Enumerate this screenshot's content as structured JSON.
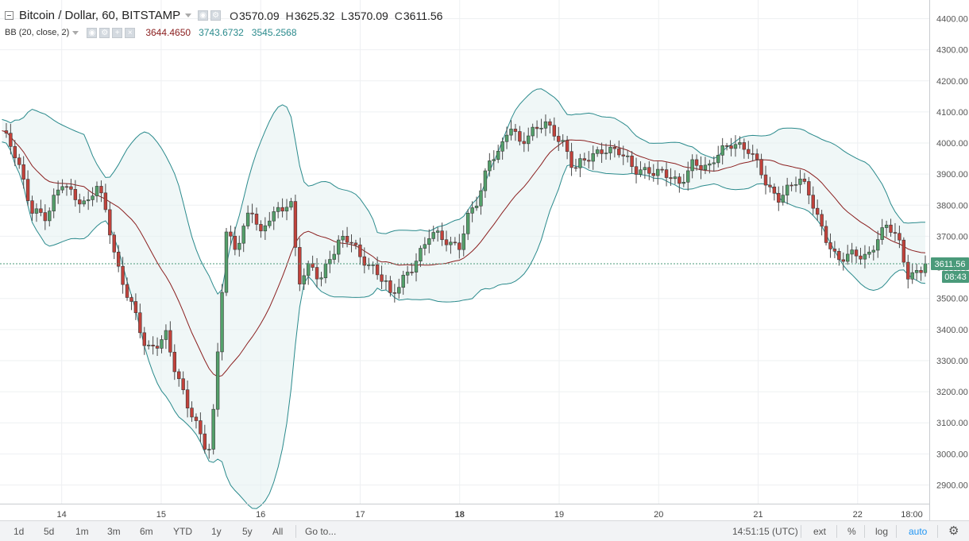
{
  "header": {
    "symbol_title": "Bitcoin / Dollar, 60, BITSTAMP",
    "open_label": "O",
    "open_value": "3570.09",
    "high_label": "H",
    "high_value": "3625.32",
    "low_label": "L",
    "low_value": "3570.09",
    "close_label": "C",
    "close_value": "3611.56"
  },
  "indicator": {
    "name": "BB (20, close, 2)",
    "basis": "3644.4650",
    "upper": "3743.6732",
    "lower": "3545.2568",
    "basis_color": "#8b2020",
    "band_color": "#2a8a8c"
  },
  "price_tag": {
    "value": "3611.56",
    "countdown": "08:43",
    "color": "#4a9a7a"
  },
  "toolbar": {
    "ranges": [
      "1d",
      "5d",
      "1m",
      "3m",
      "6m",
      "YTD",
      "1y",
      "5y",
      "All"
    ],
    "goto": "Go to...",
    "time": "14:51:15 (UTC)",
    "ext": "ext",
    "percent": "%",
    "log": "log",
    "auto": "auto",
    "settings_icon": "gear-icon"
  },
  "chart_data": {
    "type": "candlestick",
    "title": "Bitcoin / Dollar, 60, BITSTAMP",
    "ylim": [
      2840,
      4460
    ],
    "y_ticks": [
      2900,
      3000,
      3100,
      3200,
      3300,
      3400,
      3500,
      3600,
      3700,
      3800,
      3900,
      4000,
      4100,
      4200,
      4300,
      4400
    ],
    "y_tick_labels": [
      "2900.00",
      "3000.00",
      "3100.00",
      "3200.00",
      "3300.00",
      "3400.00",
      "3500.00",
      "3600.00",
      "3700.00",
      "3800.00",
      "3900.00",
      "4000.00",
      "4100.00",
      "4200.00",
      "4300.00",
      "4400.00"
    ],
    "xlim": [
      13.38,
      22.72
    ],
    "x_ticks": [
      14,
      15,
      16,
      17,
      18,
      19,
      20,
      21,
      22
    ],
    "x_tick_labels": [
      "14",
      "15",
      "16",
      "17",
      "18",
      "19",
      "20",
      "21",
      "22"
    ],
    "x_axis_end_label": "18:00",
    "bold_tick": "18",
    "last_price": 3611.56,
    "up_color": "#53a06a",
    "down_color": "#c2423b",
    "grid": true,
    "price_anchors": [
      [
        13.4,
        4030
      ],
      [
        13.55,
        3955
      ],
      [
        13.7,
        3790
      ],
      [
        13.85,
        3750
      ],
      [
        14.0,
        3880
      ],
      [
        14.12,
        3840
      ],
      [
        14.25,
        3790
      ],
      [
        14.35,
        3860
      ],
      [
        14.45,
        3780
      ],
      [
        14.55,
        3620
      ],
      [
        14.65,
        3520
      ],
      [
        14.75,
        3430
      ],
      [
        14.85,
        3330
      ],
      [
        14.95,
        3360
      ],
      [
        15.05,
        3390
      ],
      [
        15.15,
        3250
      ],
      [
        15.25,
        3160
      ],
      [
        15.35,
        3100
      ],
      [
        15.45,
        3030
      ],
      [
        15.5,
        3020
      ],
      [
        15.58,
        3380
      ],
      [
        15.65,
        3700
      ],
      [
        15.75,
        3660
      ],
      [
        15.82,
        3720
      ],
      [
        15.9,
        3810
      ],
      [
        16.0,
        3700
      ],
      [
        16.1,
        3760
      ],
      [
        16.2,
        3780
      ],
      [
        16.3,
        3830
      ],
      [
        16.38,
        3560
      ],
      [
        16.5,
        3600
      ],
      [
        16.6,
        3550
      ],
      [
        16.7,
        3640
      ],
      [
        16.8,
        3700
      ],
      [
        16.9,
        3690
      ],
      [
        17.0,
        3620
      ],
      [
        17.12,
        3600
      ],
      [
        17.25,
        3570
      ],
      [
        17.3,
        3510
      ],
      [
        17.4,
        3540
      ],
      [
        17.5,
        3580
      ],
      [
        17.6,
        3650
      ],
      [
        17.7,
        3720
      ],
      [
        17.8,
        3700
      ],
      [
        17.9,
        3660
      ],
      [
        18.0,
        3670
      ],
      [
        18.1,
        3790
      ],
      [
        18.2,
        3830
      ],
      [
        18.3,
        3940
      ],
      [
        18.4,
        3960
      ],
      [
        18.5,
        4070
      ],
      [
        18.6,
        4010
      ],
      [
        18.7,
        4020
      ],
      [
        18.85,
        4060
      ],
      [
        18.95,
        4040
      ],
      [
        19.05,
        4000
      ],
      [
        19.15,
        3910
      ],
      [
        19.3,
        3950
      ],
      [
        19.45,
        3990
      ],
      [
        19.6,
        3970
      ],
      [
        19.75,
        3910
      ],
      [
        19.9,
        3920
      ],
      [
        20.05,
        3900
      ],
      [
        20.2,
        3860
      ],
      [
        20.35,
        3950
      ],
      [
        20.5,
        3910
      ],
      [
        20.6,
        3960
      ],
      [
        20.75,
        4010
      ],
      [
        20.9,
        3980
      ],
      [
        21.0,
        3920
      ],
      [
        21.1,
        3850
      ],
      [
        21.2,
        3830
      ],
      [
        21.3,
        3860
      ],
      [
        21.4,
        3880
      ],
      [
        21.5,
        3840
      ],
      [
        21.6,
        3760
      ],
      [
        21.7,
        3690
      ],
      [
        21.8,
        3620
      ],
      [
        21.9,
        3630
      ],
      [
        22.0,
        3640
      ],
      [
        22.1,
        3640
      ],
      [
        22.2,
        3700
      ],
      [
        22.3,
        3730
      ],
      [
        22.4,
        3690
      ],
      [
        22.5,
        3580
      ],
      [
        22.6,
        3590
      ],
      [
        22.68,
        3611.56
      ]
    ]
  }
}
